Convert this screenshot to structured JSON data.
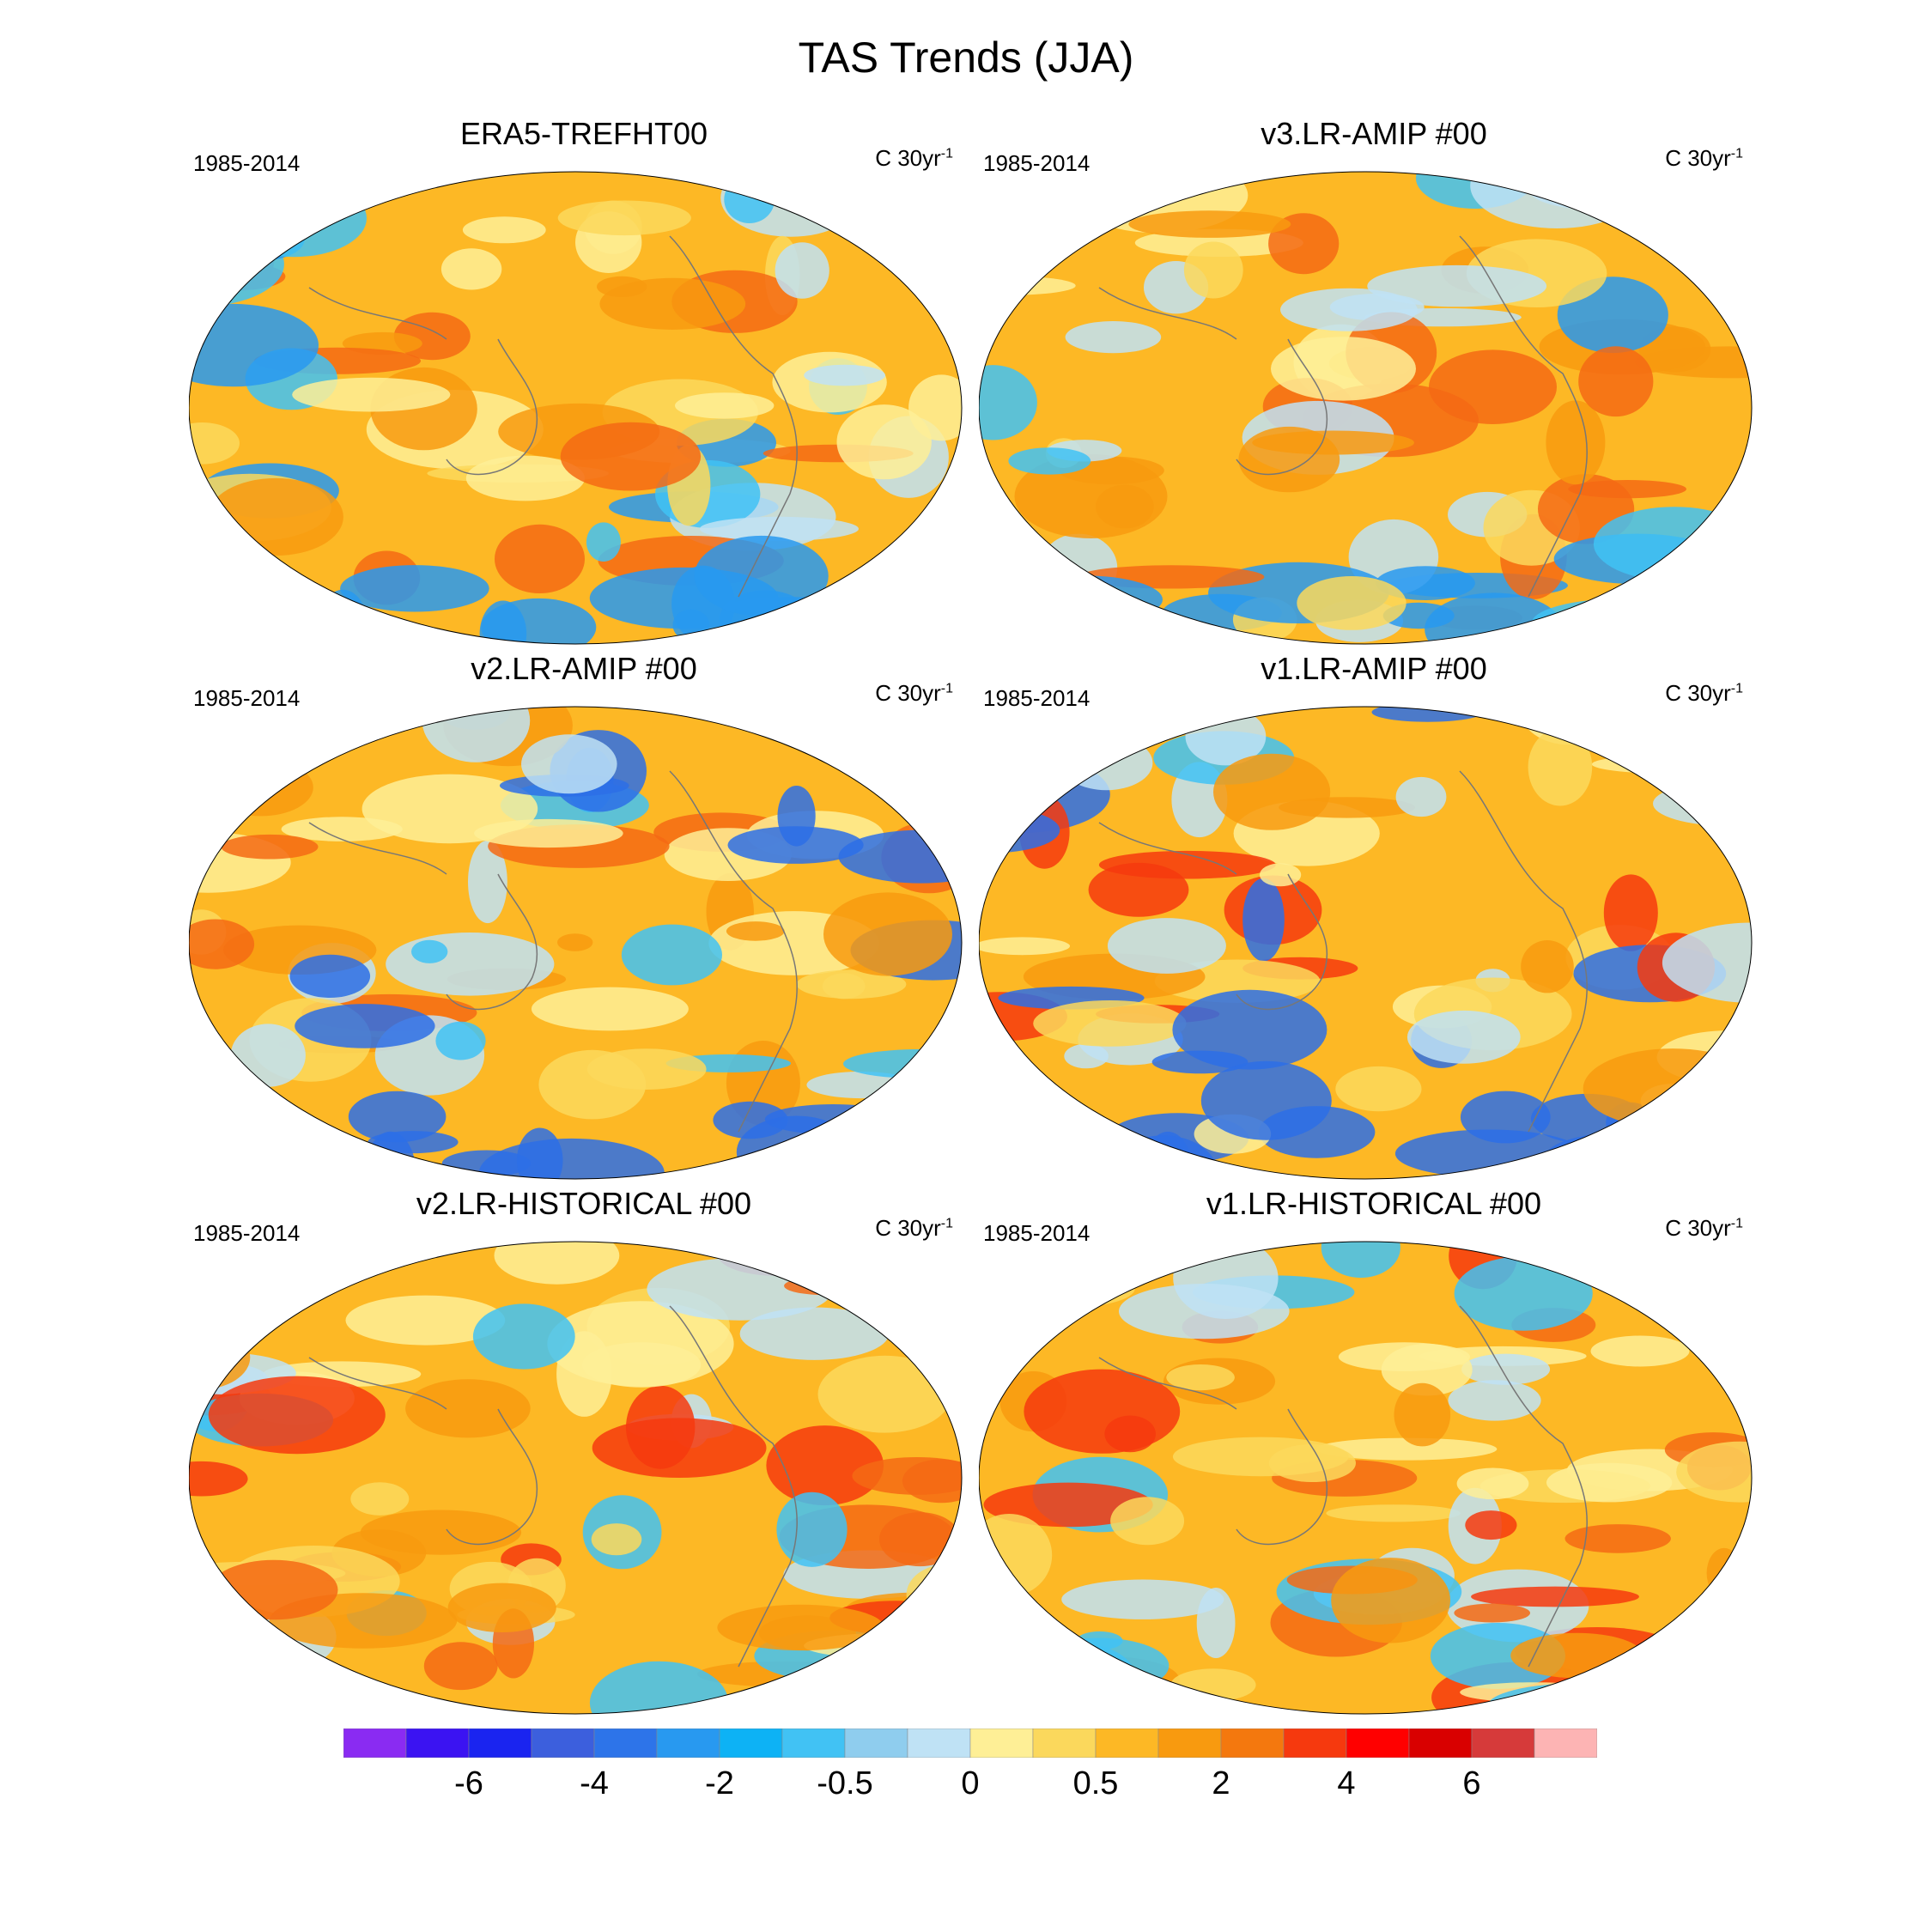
{
  "figure": {
    "title": "TAS Trends (JJA)"
  },
  "panels": [
    {
      "title": "ERA5-TREFHT00",
      "period": "1985-2014",
      "units_base": "C 30yr",
      "units_sup": "-1",
      "warm": [
        "#fdb825",
        "#f89a0f",
        "#fbd85c",
        "#feef96",
        "#bfe2f5",
        "#41c2f4",
        "#2899f0",
        "#f46a14"
      ]
    },
    {
      "title": "v3.LR-AMIP  #00",
      "period": "1985-2014",
      "units_base": "C 30yr",
      "units_sup": "-1",
      "warm": [
        "#fdb825",
        "#fbd85c",
        "#f89a0f",
        "#feef96",
        "#bfe2f5",
        "#41c2f4",
        "#2899f0",
        "#f46a14"
      ]
    },
    {
      "title": "v2.LR-AMIP  #00",
      "period": "1985-2014",
      "units_base": "C 30yr",
      "units_sup": "-1",
      "warm": [
        "#fdb825",
        "#f89a0f",
        "#fbd85c",
        "#feef96",
        "#bfe2f5",
        "#41c2f4",
        "#2d6fe6",
        "#f46a14"
      ]
    },
    {
      "title": "v1.LR-AMIP  #00",
      "period": "1985-2014",
      "units_base": "C 30yr",
      "units_sup": "-1",
      "warm": [
        "#fdb825",
        "#f89a0f",
        "#fbd85c",
        "#feef96",
        "#bfe2f5",
        "#41c2f4",
        "#2d6fe6",
        "#f6390e"
      ]
    },
    {
      "title": "v2.LR-HISTORICAL  #00",
      "period": "1985-2014",
      "units_base": "C 30yr",
      "units_sup": "-1",
      "warm": [
        "#fdb825",
        "#f89a0f",
        "#fbd85c",
        "#f46a14",
        "#feef96",
        "#bfe2f5",
        "#41c2f4",
        "#f6390e"
      ]
    },
    {
      "title": "v1.LR-HISTORICAL  #00",
      "period": "1985-2014",
      "units_base": "C 30yr",
      "units_sup": "-1",
      "warm": [
        "#fdb825",
        "#f89a0f",
        "#f46a14",
        "#fbd85c",
        "#feef96",
        "#bfe2f5",
        "#41c2f4",
        "#f6390e"
      ]
    }
  ],
  "colorbar": {
    "colors": [
      "#8a2bf2",
      "#3b13f2",
      "#1a24f0",
      "#3c5fdd",
      "#2d74e9",
      "#2899f0",
      "#0db2f5",
      "#41c2f4",
      "#8fcdee",
      "#bfe2f5",
      "#feef96",
      "#fbd85c",
      "#fdb825",
      "#f89a0f",
      "#f4780e",
      "#f6390e",
      "#ff0000",
      "#d90000",
      "#d63a3a",
      "#fdb4b4"
    ],
    "labels": [
      {
        "text": "-6",
        "boundary": 2
      },
      {
        "text": "-4",
        "boundary": 4
      },
      {
        "text": "-2",
        "boundary": 6
      },
      {
        "text": "-0.5",
        "boundary": 8
      },
      {
        "text": "0",
        "boundary": 10
      },
      {
        "text": "0.5",
        "boundary": 12
      },
      {
        "text": "2",
        "boundary": 14
      },
      {
        "text": "4",
        "boundary": 16
      },
      {
        "text": "6",
        "boundary": 18
      }
    ]
  }
}
